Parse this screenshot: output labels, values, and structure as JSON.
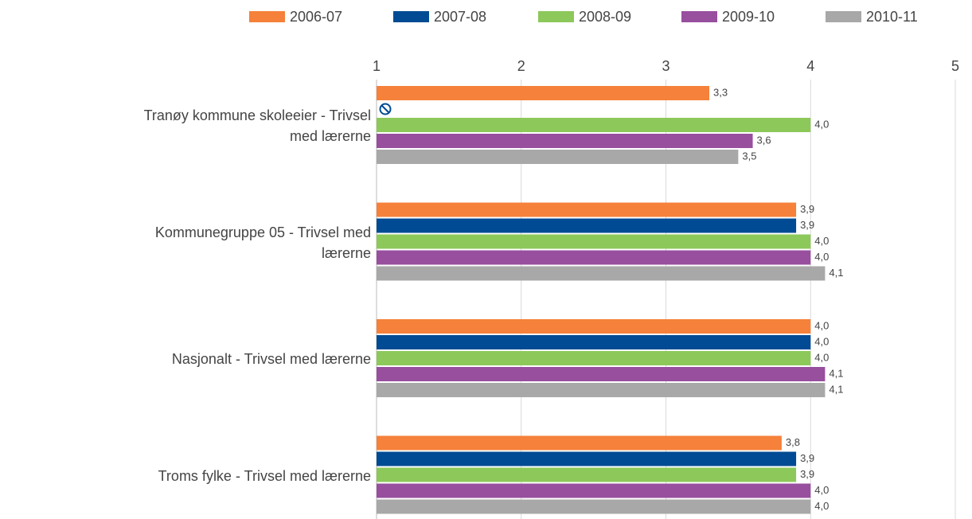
{
  "chart_data": {
    "type": "bar",
    "orientation": "horizontal",
    "categories": [
      "Tranøy kommune skoleeier - Trivsel med lærerne",
      "Kommunegruppe 05 - Trivsel med lærerne",
      "Nasjonalt - Trivsel med lærerne",
      "Troms fylke - Trivsel med lærerne"
    ],
    "series": [
      {
        "name": "2006-07",
        "color": "#f5813a",
        "values": [
          3.3,
          3.9,
          4.0,
          3.8
        ],
        "value_labels": [
          "3,3",
          "3,9",
          "4,0",
          "3,8"
        ]
      },
      {
        "name": "2007-08",
        "color": "#004b93",
        "values": [
          null,
          3.9,
          4.0,
          3.9
        ],
        "value_labels": [
          null,
          "3,9",
          "4,0",
          "3,9"
        ]
      },
      {
        "name": "2008-09",
        "color": "#8dc85a",
        "values": [
          4.0,
          4.0,
          4.0,
          3.9
        ],
        "value_labels": [
          "4,0",
          "4,0",
          "4,0",
          "3,9"
        ]
      },
      {
        "name": "2009-10",
        "color": "#974f9e",
        "values": [
          3.6,
          4.0,
          4.1,
          4.0
        ],
        "value_labels": [
          "3,6",
          "4,0",
          "4,1",
          "4,0"
        ]
      },
      {
        "name": "2010-11",
        "color": "#a8a8a8",
        "values": [
          3.5,
          4.1,
          4.1,
          4.0
        ],
        "value_labels": [
          "3,5",
          "4,1",
          "4,1",
          "4,0"
        ]
      }
    ],
    "xlim": [
      1,
      5
    ],
    "xticks": [
      1,
      2,
      3,
      4,
      5
    ],
    "grid": true,
    "legend": "top"
  }
}
